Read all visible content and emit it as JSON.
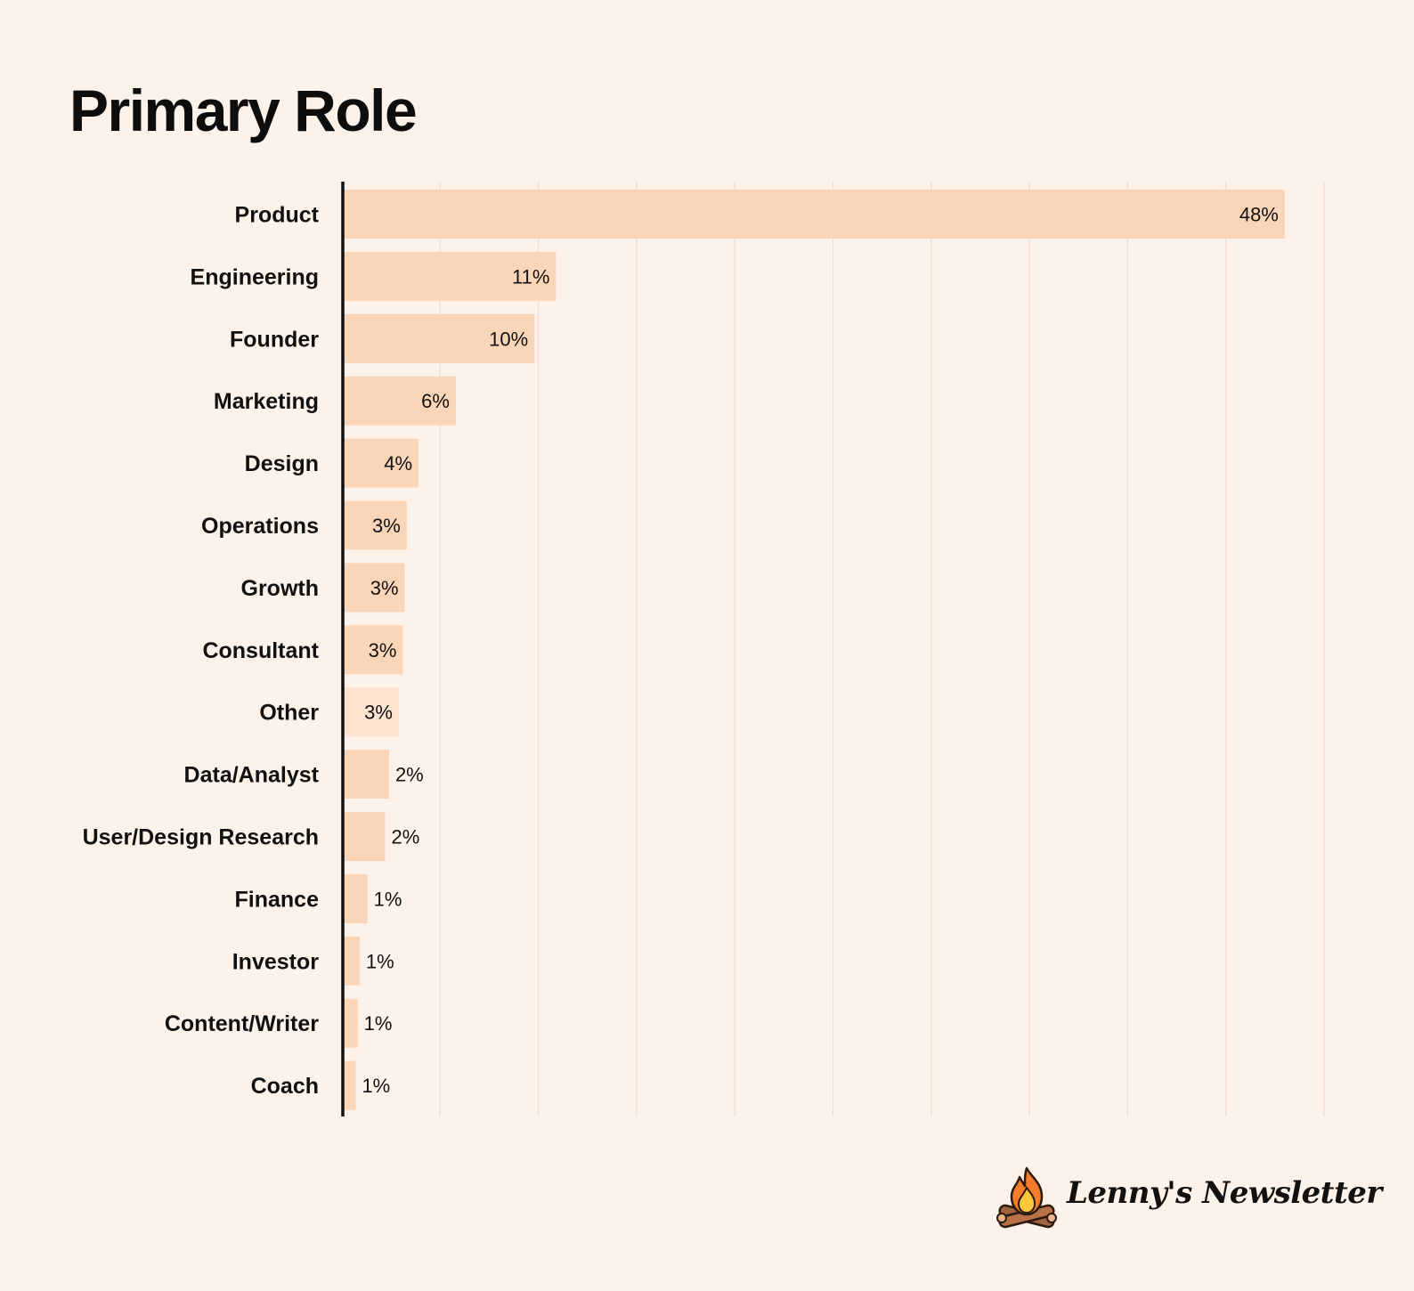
{
  "chart_data": {
    "type": "bar",
    "orientation": "horizontal",
    "title": "Primary Role",
    "categories": [
      "Product",
      "Engineering",
      "Founder",
      "Marketing",
      "Design",
      "Operations",
      "Growth",
      "Consultant",
      "Other",
      "Data/Analyst",
      "User/Design Research",
      "Finance",
      "Investor",
      "Content/Writer",
      "Coach"
    ],
    "values": [
      48.0,
      10.9,
      9.8,
      5.8,
      3.9,
      3.3,
      3.2,
      3.1,
      2.9,
      2.4,
      2.2,
      1.3,
      0.9,
      0.8,
      0.7
    ],
    "value_labels": [
      "48%",
      "11%",
      "10%",
      "6%",
      "4%",
      "3%",
      "3%",
      "3%",
      "3%",
      "2%",
      "2%",
      "1%",
      "1%",
      "1%",
      "1%"
    ],
    "xlim": [
      0,
      50
    ],
    "grid": true,
    "legend": "none",
    "colors": {
      "bar": "#fbd5b8",
      "bar_other": "#fce2cf",
      "grid": "#ece0d6",
      "axis": "#111111",
      "background": "#fdf2ea"
    }
  },
  "brand": {
    "name": "Lenny's Newsletter",
    "logo_icon": "campfire-icon"
  }
}
